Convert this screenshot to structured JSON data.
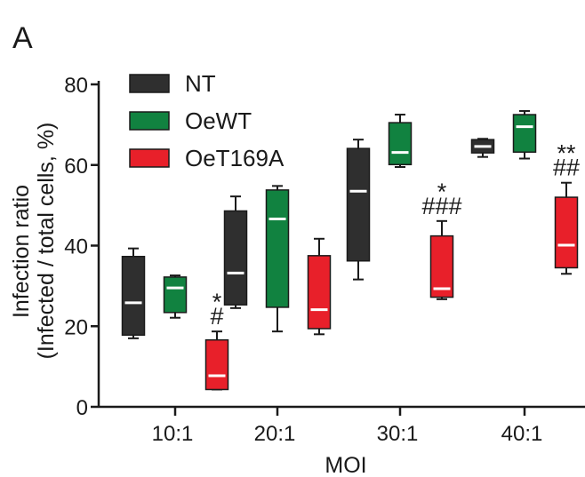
{
  "chart_data": {
    "type": "box",
    "panel_label": "A",
    "title": "",
    "xlabel": "MOI",
    "ylabel_line1": "Infection ratio",
    "ylabel_line2": "(Infected / total cells, %)",
    "ylim": [
      0,
      80
    ],
    "yticks": [
      0,
      20,
      40,
      60,
      80
    ],
    "categories": [
      "10:1",
      "20:1",
      "30:1",
      "40:1"
    ],
    "legend_position": "top-left",
    "series": [
      {
        "name": "NT",
        "color": "#2f2f2f",
        "boxes": [
          {
            "min": 17,
            "q1": 17.8,
            "median": 25.8,
            "q3": 37.3,
            "max": 39.3
          },
          {
            "min": 24.5,
            "q1": 25.3,
            "median": 33.2,
            "q3": 48.6,
            "max": 52.2
          },
          {
            "min": 31.6,
            "q1": 36.2,
            "median": 53.5,
            "q3": 64.1,
            "max": 66.3
          },
          {
            "min": 62,
            "q1": 63,
            "median": 64.6,
            "q3": 66.3,
            "max": 66.5
          }
        ]
      },
      {
        "name": "OeWT",
        "color": "#118240",
        "boxes": [
          {
            "min": 22.1,
            "q1": 23.4,
            "median": 29.5,
            "q3": 32.2,
            "max": 32.6
          },
          {
            "min": 18.7,
            "q1": 24.7,
            "median": 46.6,
            "q3": 53.8,
            "max": 54.8
          },
          {
            "min": 59.5,
            "q1": 60.1,
            "median": 63.1,
            "q3": 70.5,
            "max": 72.5
          },
          {
            "min": 61.6,
            "q1": 63.2,
            "median": 69.5,
            "q3": 72.5,
            "max": 73.4
          }
        ]
      },
      {
        "name": "OeT169A",
        "color": "#e8202a",
        "boxes": [
          {
            "min": 4.3,
            "q1": 4.3,
            "median": 7.7,
            "q3": 16.6,
            "max": 18.7
          },
          {
            "min": 18,
            "q1": 19.4,
            "median": 24.1,
            "q3": 37.5,
            "max": 41.7
          },
          {
            "min": 26.7,
            "q1": 27.2,
            "median": 29.3,
            "q3": 42.4,
            "max": 46.1
          },
          {
            "min": 33,
            "q1": 34.5,
            "median": 40.1,
            "q3": 52,
            "max": 55.6
          }
        ]
      }
    ],
    "annotations": [
      {
        "category": 0,
        "lines": [
          "*",
          "#"
        ]
      },
      {
        "category": 2,
        "lines": [
          "*",
          "###"
        ]
      },
      {
        "category": 3,
        "lines": [
          "**",
          "##"
        ]
      }
    ]
  }
}
